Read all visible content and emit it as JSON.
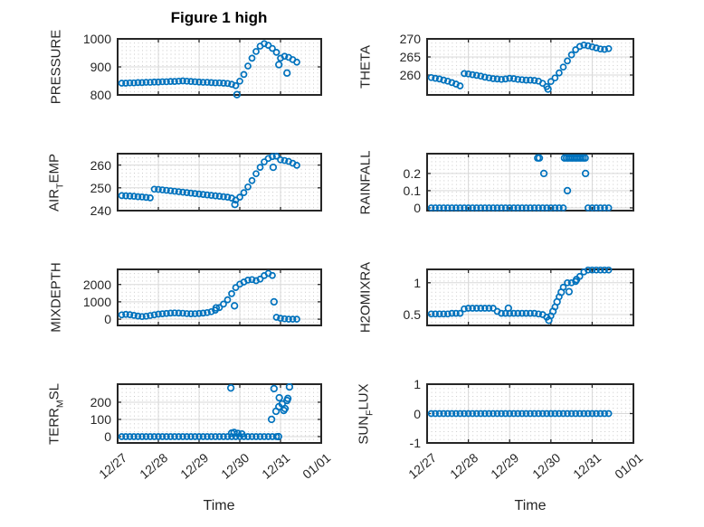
{
  "title": "Figure 1 high",
  "xlabel": "Time",
  "colors": {
    "marker": "#0072BD",
    "axis": "#262626",
    "major_grid": "#d9d9d9",
    "minor_grid_dots": "#c9c9c9",
    "background": "#ffffff",
    "title_text": "#000000"
  },
  "chart_data": {
    "type": "scatter",
    "marker": "open-circle",
    "grid": "major solid + dotted minor",
    "x_axis": {
      "label": "Time",
      "tick_labels": [
        "12/27",
        "12/28",
        "12/29",
        "12/30",
        "12/31",
        "01/01"
      ],
      "tick_values": [
        0,
        1,
        2,
        3,
        4,
        5
      ],
      "lim": [
        0,
        5
      ],
      "unit": "days since 12/27"
    },
    "t": [
      0.1,
      0.2,
      0.3,
      0.4,
      0.5,
      0.6,
      0.7,
      0.8,
      0.9,
      1.0,
      1.1,
      1.2,
      1.3,
      1.4,
      1.5,
      1.6,
      1.7,
      1.8,
      1.9,
      2.0,
      2.1,
      2.2,
      2.3,
      2.4,
      2.5,
      2.6,
      2.7,
      2.8,
      2.9,
      3.0,
      3.1,
      3.2,
      3.3,
      3.4,
      3.5,
      3.6,
      3.7,
      3.8,
      3.9,
      4.0,
      4.1,
      4.2,
      4.3,
      4.4
    ],
    "subplots": [
      {
        "name": "pressure",
        "label_parts": [
          {
            "text": "PRESSURE",
            "sub": false
          }
        ],
        "ytick_values": [
          800,
          900,
          1000
        ],
        "ytick_labels": [
          "800",
          "900",
          "1000"
        ],
        "ylim": [
          800,
          1000
        ],
        "y": [
          842,
          842,
          843,
          843,
          844,
          844,
          845,
          845,
          846,
          846,
          847,
          847,
          848,
          848,
          849,
          850,
          849,
          848,
          847,
          846,
          845,
          845,
          844,
          843,
          843,
          842,
          841,
          838,
          833,
          849,
          873,
          903,
          931,
          955,
          974,
          983,
          977,
          966,
          952,
          931,
          938,
          934,
          926,
          917
        ],
        "extra_points": [
          [
            2.93,
            801
          ],
          [
            3.96,
            908
          ],
          [
            4.16,
            878
          ]
        ]
      },
      {
        "name": "air-temp",
        "label_parts": [
          {
            "text": "AIR",
            "sub": false
          },
          {
            "text": "T",
            "sub": true
          },
          {
            "text": "EMP",
            "sub": false
          }
        ],
        "ytick_values": [
          240,
          250,
          260
        ],
        "ytick_labels": [
          "240",
          "250",
          "260"
        ],
        "ylim": [
          240,
          265
        ],
        "y": [
          246.6,
          246.5,
          246.4,
          246.3,
          246.1,
          246.0,
          245.8,
          245.6,
          249.4,
          249.3,
          249.1,
          248.9,
          248.7,
          248.5,
          248.3,
          248.1,
          247.9,
          247.7,
          247.5,
          247.3,
          247.1,
          246.9,
          246.7,
          246.5,
          246.3,
          246.1,
          245.9,
          245.5,
          244.6,
          245.9,
          247.9,
          250.4,
          253.2,
          256.2,
          259.0,
          261.4,
          262.9,
          263.7,
          263.9,
          262.3,
          262.0,
          261.6,
          260.8,
          259.9
        ],
        "extra_points": [
          [
            2.88,
            242.7
          ],
          [
            3.82,
            259.0
          ]
        ]
      },
      {
        "name": "mixdepth",
        "label_parts": [
          {
            "text": "MIXDEPTH",
            "sub": false
          }
        ],
        "ytick_values": [
          0,
          1000,
          2000
        ],
        "ytick_labels": [
          "0",
          "1000",
          "2000"
        ],
        "ylim": [
          -360,
          2870
        ],
        "y": [
          250,
          280,
          260,
          220,
          180,
          150,
          170,
          210,
          250,
          290,
          310,
          330,
          350,
          360,
          350,
          340,
          320,
          310,
          315,
          330,
          350,
          380,
          430,
          520,
          670,
          870,
          1120,
          1470,
          1820,
          2020,
          2140,
          2250,
          2280,
          2220,
          2310,
          2510,
          2640,
          2520,
          110,
          50,
          20,
          0,
          0,
          0
        ],
        "extra_points": [
          [
            2.42,
            650
          ],
          [
            2.87,
            770
          ],
          [
            3.84,
            1000
          ]
        ]
      },
      {
        "name": "terr-msl",
        "label_parts": [
          {
            "text": "TERR",
            "sub": false
          },
          {
            "text": "M",
            "sub": true
          },
          {
            "text": "SL",
            "sub": false
          }
        ],
        "ytick_values": [
          0,
          100,
          200
        ],
        "ytick_labels": [
          "0",
          "100",
          "200"
        ],
        "ylim": [
          -37,
          305
        ],
        "y": [
          0,
          0,
          0,
          0,
          0,
          0,
          0,
          0,
          0,
          0,
          0,
          0,
          0,
          0,
          0,
          0,
          0,
          0,
          0,
          0,
          0,
          0,
          0,
          0,
          0,
          0,
          0,
          0,
          0,
          0,
          0,
          0,
          0,
          0,
          0,
          0,
          0,
          0,
          0,
          null,
          null,
          null,
          null,
          null
        ],
        "extra_points": [
          [
            2.78,
            283
          ],
          [
            2.8,
            20
          ],
          [
            2.86,
            24
          ],
          [
            2.95,
            18
          ],
          [
            3.05,
            15
          ],
          [
            3.78,
            100
          ],
          [
            3.84,
            279
          ],
          [
            3.89,
            147
          ],
          [
            3.95,
            0
          ],
          [
            3.96,
            174
          ],
          [
            3.97,
            226
          ],
          [
            4.04,
            190
          ],
          [
            4.08,
            152
          ],
          [
            4.11,
            163
          ],
          [
            4.16,
            210
          ],
          [
            4.18,
            222
          ],
          [
            4.22,
            289
          ]
        ]
      },
      {
        "name": "theta",
        "label_parts": [
          {
            "text": "THETA",
            "sub": false
          }
        ],
        "ytick_values": [
          260,
          265,
          270
        ],
        "ytick_labels": [
          "260",
          "265",
          "270"
        ],
        "ylim": [
          254.5,
          270
        ],
        "y": [
          259.3,
          259.1,
          258.9,
          258.6,
          258.3,
          257.9,
          257.5,
          257.0,
          260.4,
          260.3,
          260.1,
          259.9,
          259.7,
          259.4,
          259.2,
          259.0,
          258.9,
          258.8,
          258.9,
          259.1,
          259.0,
          258.8,
          258.7,
          258.6,
          258.6,
          258.5,
          258.3,
          257.7,
          256.8,
          258.2,
          259.2,
          260.6,
          262.2,
          263.9,
          265.6,
          267.0,
          267.9,
          268.3,
          268.1,
          267.8,
          267.5,
          267.2,
          267.1,
          267.3
        ],
        "extra_points": [
          [
            2.93,
            256.1
          ]
        ]
      },
      {
        "name": "rainfall",
        "label_parts": [
          {
            "text": "RAINFALL",
            "sub": false
          }
        ],
        "ytick_values": [
          0,
          0.1,
          0.2
        ],
        "ytick_labels": [
          "0",
          "0.1",
          "0.2"
        ],
        "ylim": [
          -0.016,
          0.315
        ],
        "y": [
          0,
          0,
          0,
          0,
          0,
          0,
          0,
          0,
          0,
          0,
          0,
          0,
          0,
          0,
          0,
          0,
          0,
          0,
          0,
          0,
          0,
          0,
          0,
          0,
          0,
          0,
          0,
          0,
          0,
          0,
          0,
          0,
          0,
          null,
          null,
          null,
          null,
          null,
          0,
          0,
          0,
          0,
          0,
          0
        ],
        "extra_points": [
          [
            2.68,
            0.29
          ],
          [
            2.72,
            0.29
          ],
          [
            2.83,
            0.2
          ],
          [
            3.33,
            0.29
          ],
          [
            3.38,
            0.29
          ],
          [
            3.43,
            0.29
          ],
          [
            3.48,
            0.29
          ],
          [
            3.53,
            0.29
          ],
          [
            3.58,
            0.29
          ],
          [
            3.63,
            0.29
          ],
          [
            3.68,
            0.29
          ],
          [
            3.73,
            0.29
          ],
          [
            3.78,
            0.29
          ],
          [
            3.83,
            0.29
          ],
          [
            3.4,
            0.1
          ],
          [
            3.84,
            0.2
          ]
        ]
      },
      {
        "name": "h2omixra",
        "label_parts": [
          {
            "text": "H2OMIXRA",
            "sub": false
          }
        ],
        "ytick_values": [
          0.5,
          1
        ],
        "ytick_labels": [
          "0.5",
          "1"
        ],
        "ylim": [
          0.33,
          1.21
        ],
        "y": [
          0.51,
          0.51,
          0.51,
          0.51,
          0.51,
          0.52,
          0.52,
          0.52,
          0.59,
          0.6,
          0.6,
          0.6,
          0.6,
          0.6,
          0.6,
          0.6,
          0.55,
          0.52,
          0.52,
          0.52,
          0.52,
          0.52,
          0.52,
          0.52,
          0.52,
          0.52,
          0.51,
          0.5,
          0.46,
          0.48,
          0.62,
          0.78,
          0.93,
          1.0,
          1.0,
          1.02,
          1.1,
          1.17,
          1.2,
          1.2,
          1.2,
          1.2,
          1.2,
          1.2
        ],
        "extra_points": [
          [
            1.97,
            0.6
          ],
          [
            2.95,
            0.41
          ],
          [
            3.05,
            0.55
          ],
          [
            3.15,
            0.7
          ],
          [
            3.25,
            0.85
          ],
          [
            3.44,
            0.86
          ],
          [
            3.62,
            1.05
          ]
        ]
      },
      {
        "name": "sun-flux",
        "label_parts": [
          {
            "text": "SUN",
            "sub": false
          },
          {
            "text": "F",
            "sub": true
          },
          {
            "text": "LUX",
            "sub": false
          }
        ],
        "ytick_values": [
          -1,
          0,
          1
        ],
        "ytick_labels": [
          "-1",
          "0",
          "1"
        ],
        "ylim": [
          -1,
          1
        ],
        "y": [
          0,
          0,
          0,
          0,
          0,
          0,
          0,
          0,
          0,
          0,
          0,
          0,
          0,
          0,
          0,
          0,
          0,
          0,
          0,
          0,
          0,
          0,
          0,
          0,
          0,
          0,
          0,
          0,
          0,
          0,
          0,
          0,
          0,
          0,
          0,
          0,
          0,
          0,
          0,
          0,
          0,
          0,
          0,
          0
        ],
        "extra_points": []
      }
    ]
  }
}
